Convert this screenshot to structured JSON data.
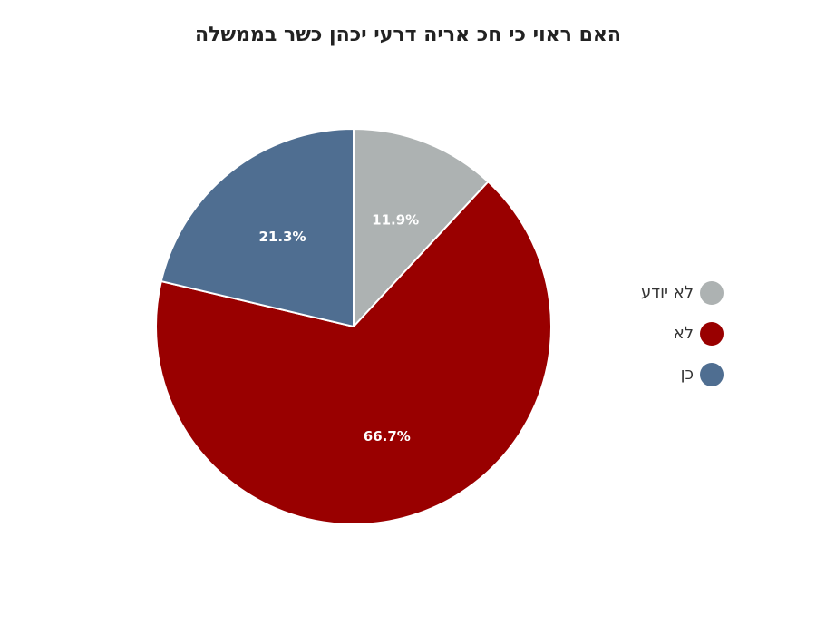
{
  "chart_data": {
    "type": "pie",
    "title": "האם ראוי כי חכ אריה דרעי יכהן כשר בממשלה",
    "slices": [
      {
        "label": "לא יודע",
        "value": 11.9,
        "display": "11.9%",
        "color": "#adb2b2"
      },
      {
        "label": "לא",
        "value": 66.7,
        "display": "66.7%",
        "color": "#990000"
      },
      {
        "label": "כן",
        "value": 21.3,
        "display": "21.3%",
        "color": "#4f6e91"
      }
    ],
    "start_angle_deg": 0,
    "direction": "clockwise",
    "legend_position": "right"
  }
}
